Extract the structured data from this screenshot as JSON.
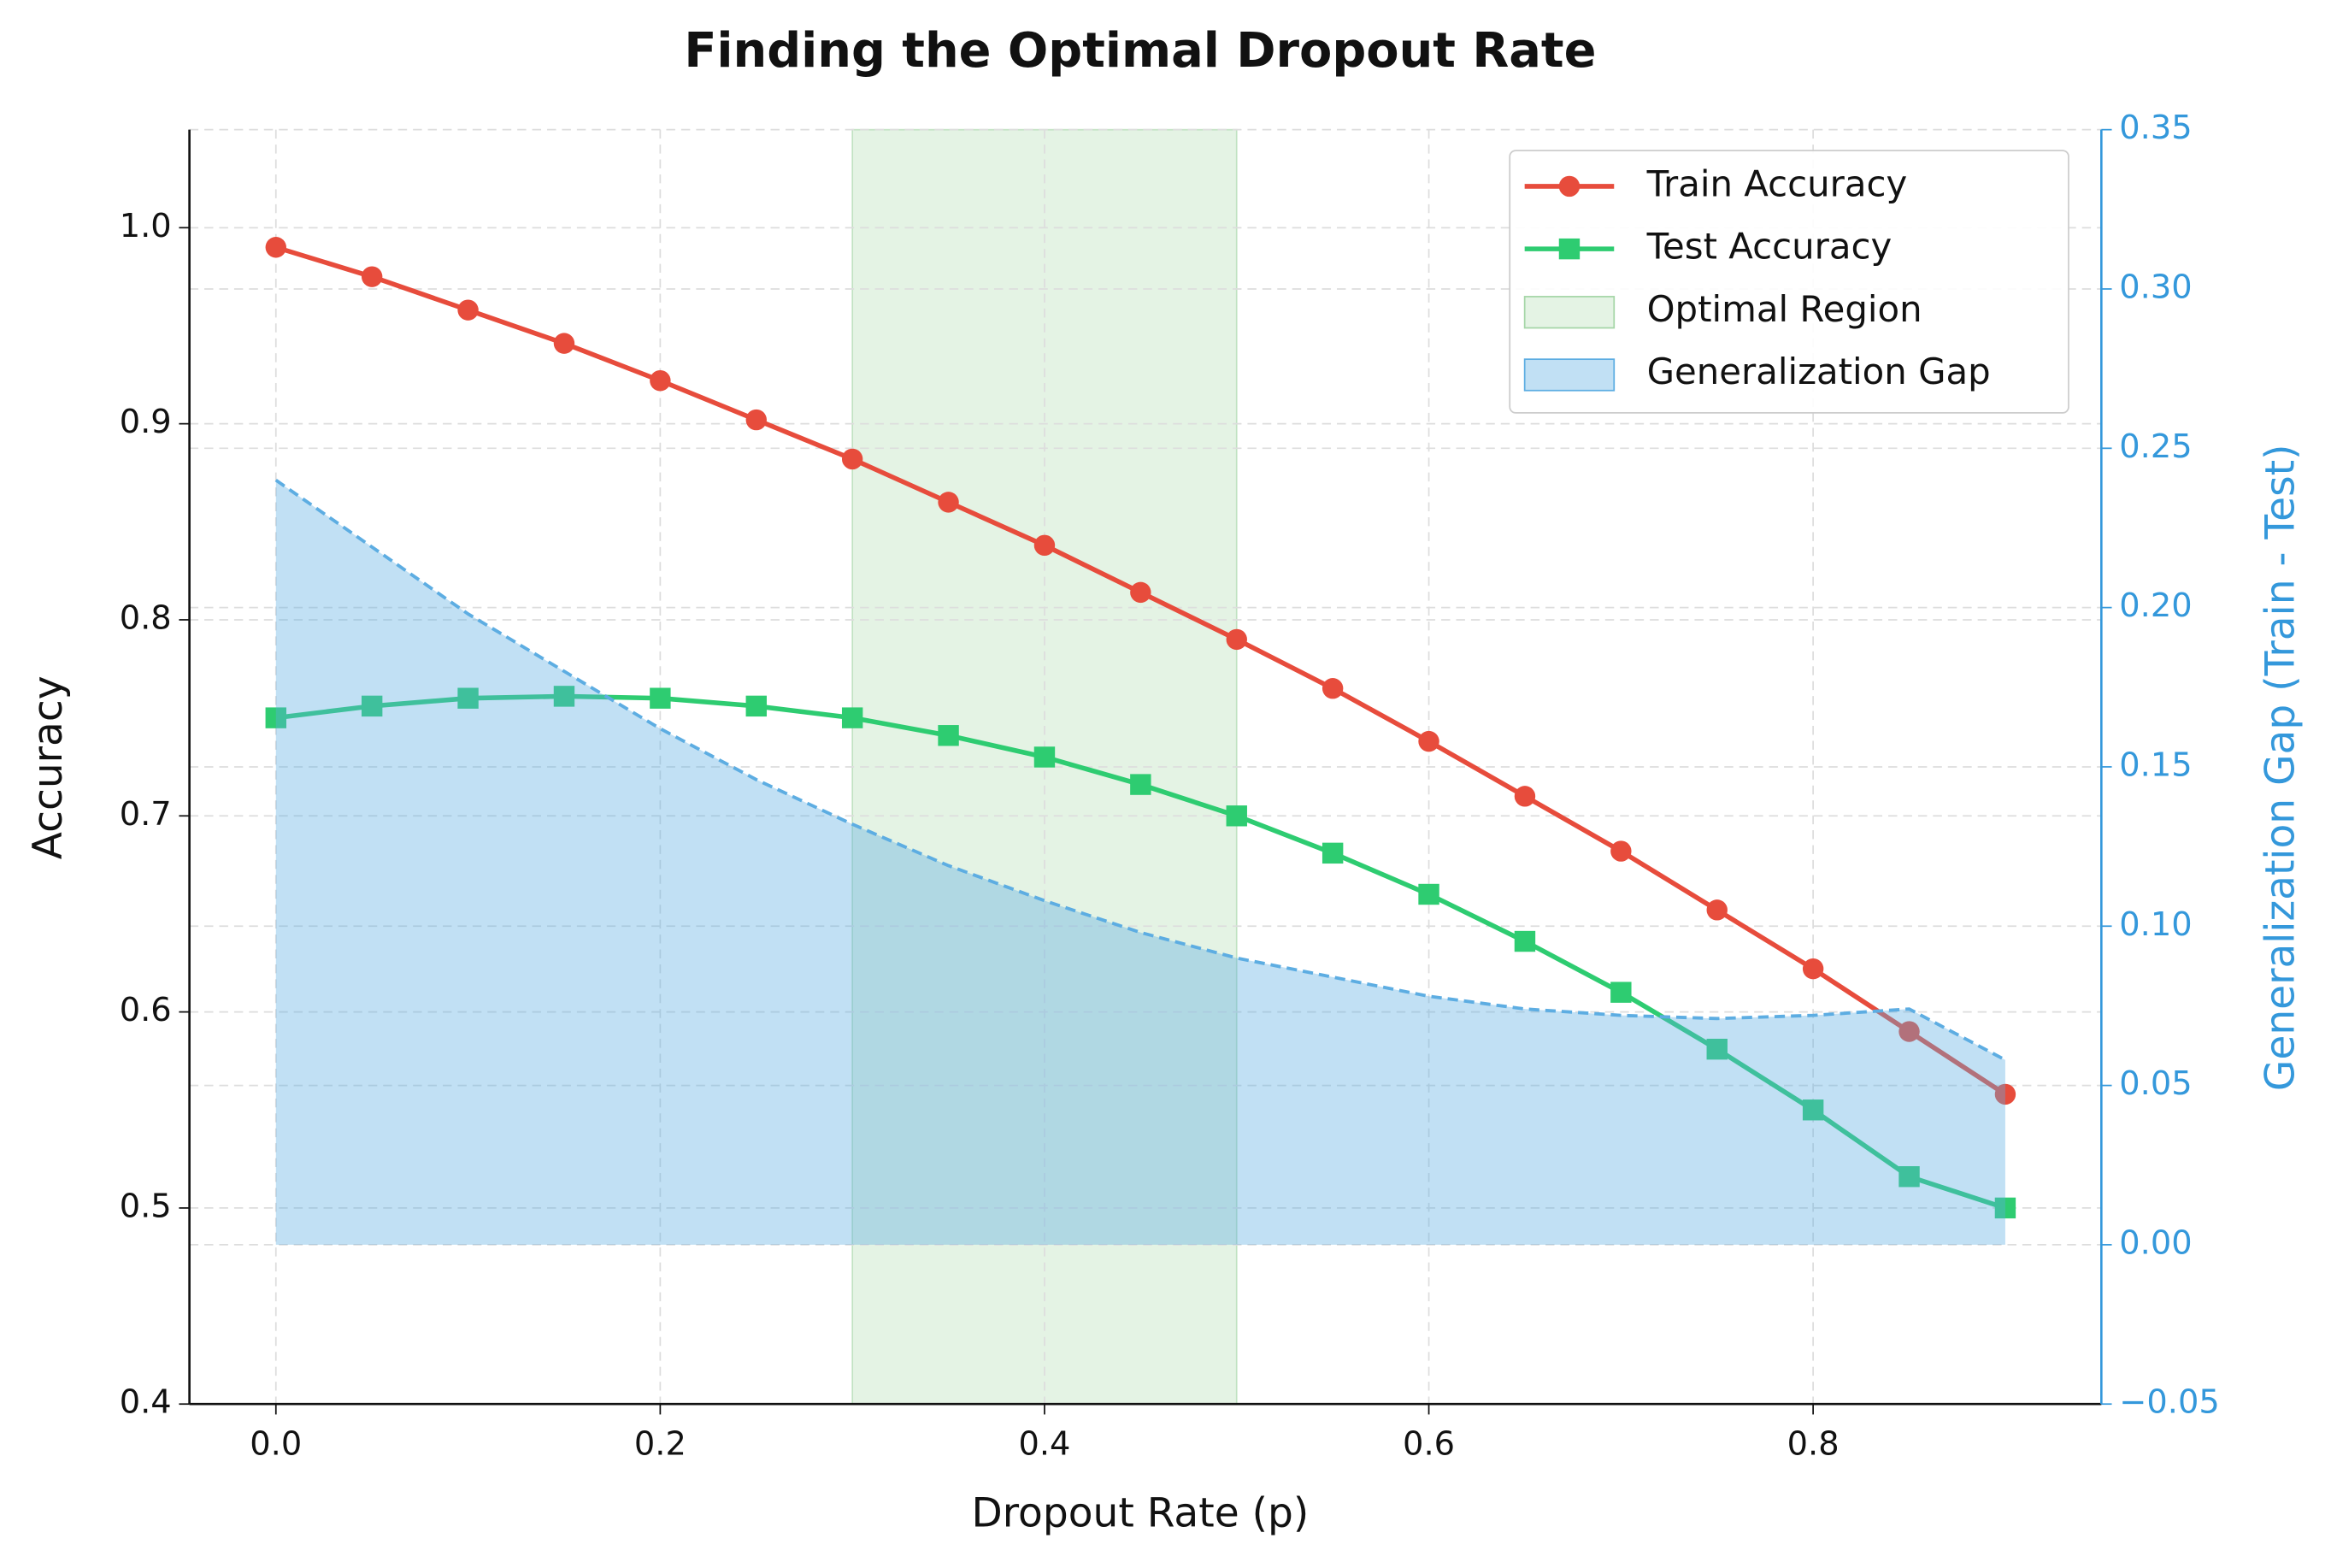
{
  "chart_data": {
    "type": "line",
    "title": "Finding the Optimal Dropout Rate",
    "x_label": "Dropout Rate (p)",
    "y_label": "Accuracy",
    "y2_label": "Generalization Gap (Train - Test)",
    "x": [
      0,
      0.05,
      0.1,
      0.15,
      0.2,
      0.25,
      0.3,
      0.35,
      0.4,
      0.45,
      0.5,
      0.55,
      0.6,
      0.65,
      0.7,
      0.75,
      0.8,
      0.85,
      0.9
    ],
    "series": [
      {
        "name": "Train Accuracy",
        "color": "#e74c3c",
        "marker": "circle",
        "values": [
          0.99,
          0.975,
          0.958,
          0.941,
          0.922,
          0.902,
          0.882,
          0.86,
          0.838,
          0.814,
          0.79,
          0.765,
          0.738,
          0.71,
          0.682,
          0.652,
          0.622,
          0.59,
          0.558
        ]
      },
      {
        "name": "Test Accuracy",
        "color": "#2ecc71",
        "marker": "square",
        "values": [
          0.75,
          0.756,
          0.76,
          0.761,
          0.76,
          0.756,
          0.75,
          0.741,
          0.73,
          0.716,
          0.7,
          0.681,
          0.66,
          0.636,
          0.61,
          0.581,
          0.55,
          0.516,
          0.5
        ]
      },
      {
        "name": "Generalization Gap",
        "color": "#5dade2",
        "axis": "y2",
        "area": true,
        "values": [
          0.24,
          0.219,
          0.198,
          0.18,
          0.162,
          0.146,
          0.132,
          0.119,
          0.108,
          0.098,
          0.09,
          0.084,
          0.078,
          0.074,
          0.072,
          0.071,
          0.072,
          0.074,
          0.058
        ]
      }
    ],
    "span": {
      "name": "Optimal Region",
      "x": [
        0.3,
        0.5
      ],
      "color": "#a5d6a7"
    },
    "xlim": [
      -0.045,
      0.95
    ],
    "xticks": [
      {
        "value": 0,
        "label": "0.0"
      },
      0.2,
      0.4,
      0.6,
      0.8
    ],
    "ylim": [
      0.4,
      1.05
    ],
    "yticks": [
      0.4,
      0.5,
      0.6,
      0.7,
      0.8,
      0.9,
      {
        "value": 1,
        "label": "1.0"
      }
    ],
    "y2lim": [
      -0.05,
      0.35
    ],
    "y2ticks": [
      {
        "value": -0.05,
        "label": "−0.05"
      },
      {
        "value": 0,
        "label": "0.00"
      },
      0.05,
      {
        "value": 0.1,
        "label": "0.10"
      },
      0.15,
      {
        "value": 0.2,
        "label": "0.20"
      },
      0.25,
      {
        "value": 0.3,
        "label": "0.30"
      },
      0.35
    ],
    "y2_color": "#3498db",
    "grid": true,
    "legend": "upper right"
  }
}
